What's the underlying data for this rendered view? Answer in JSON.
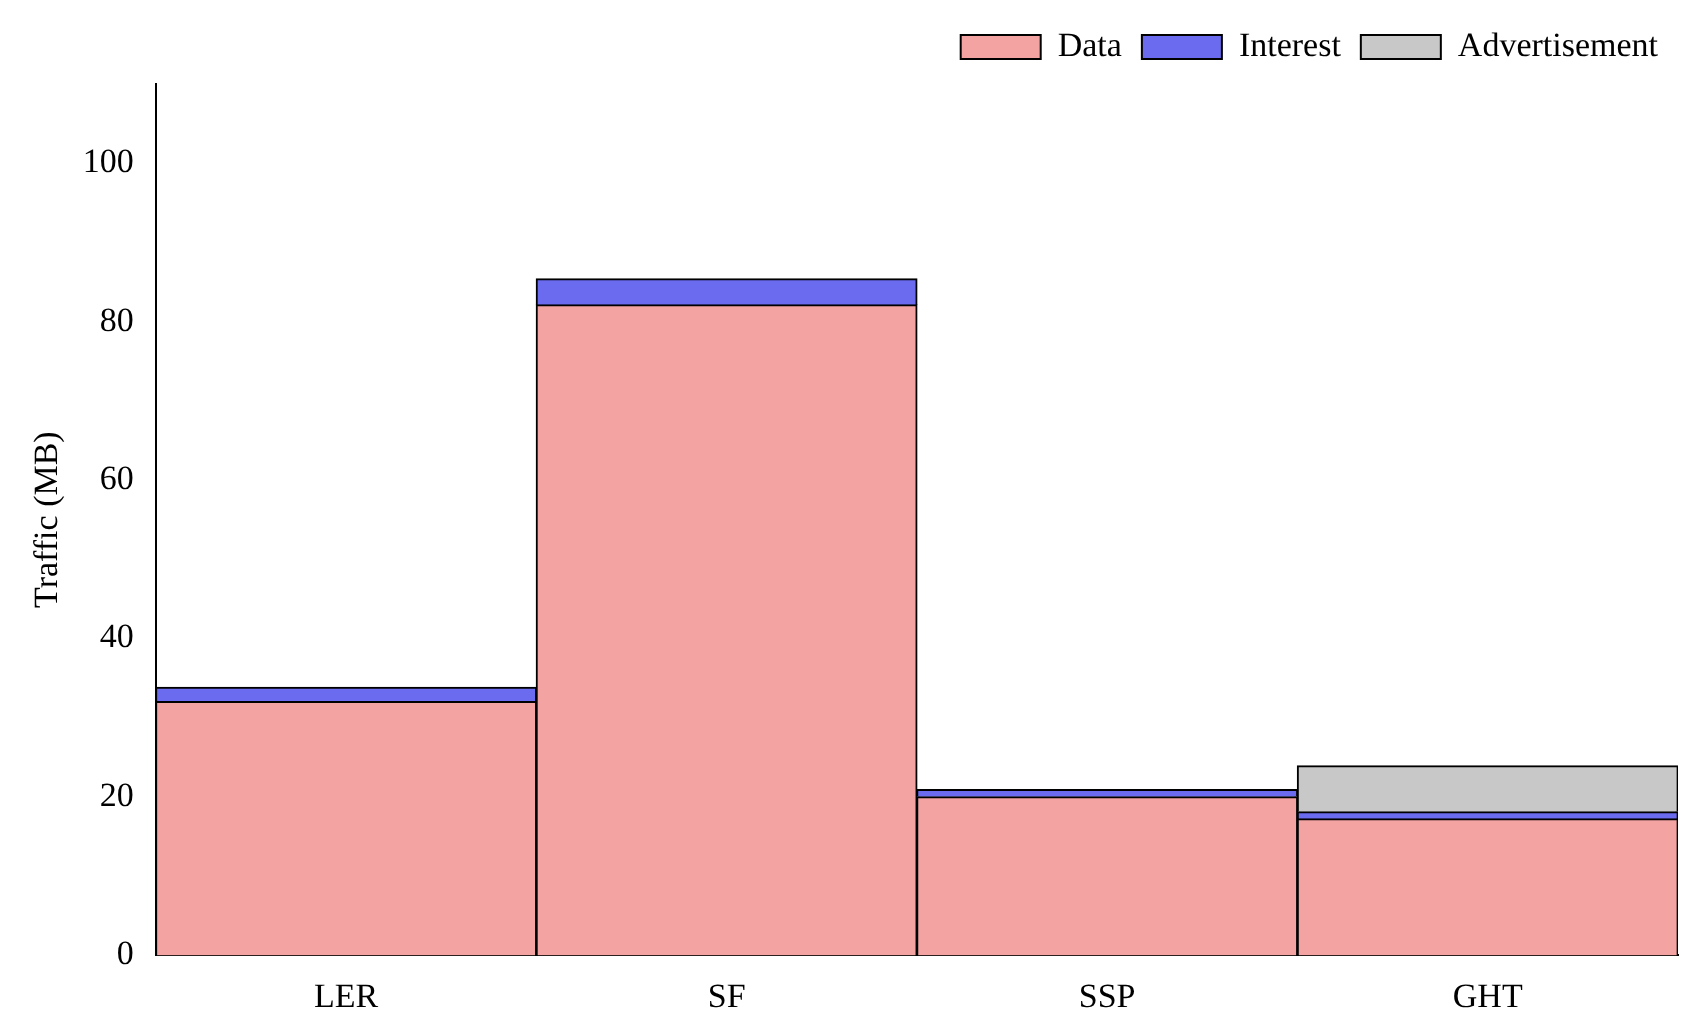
{
  "chart_data": {
    "type": "bar",
    "ylabel": "Traffic (MB)",
    "categories": [
      "LER",
      "SF",
      "SSP",
      "GHT"
    ],
    "stacked": true,
    "series": [
      {
        "name": "Data",
        "color": "#f4a3a3",
        "values": [
          32.0,
          82.1,
          20.0,
          17.2
        ]
      },
      {
        "name": "Interest",
        "color": "#6b6bf0",
        "values": [
          1.8,
          3.3,
          0.9,
          0.9
        ]
      },
      {
        "name": "Advertisement",
        "color": "#c8c8c8",
        "values": [
          0,
          0,
          0,
          5.8
        ]
      }
    ],
    "ylim": [
      0,
      110
    ],
    "yticks": [
      0,
      20,
      40,
      60,
      80,
      100
    ],
    "grid": false,
    "legend": "top right"
  }
}
